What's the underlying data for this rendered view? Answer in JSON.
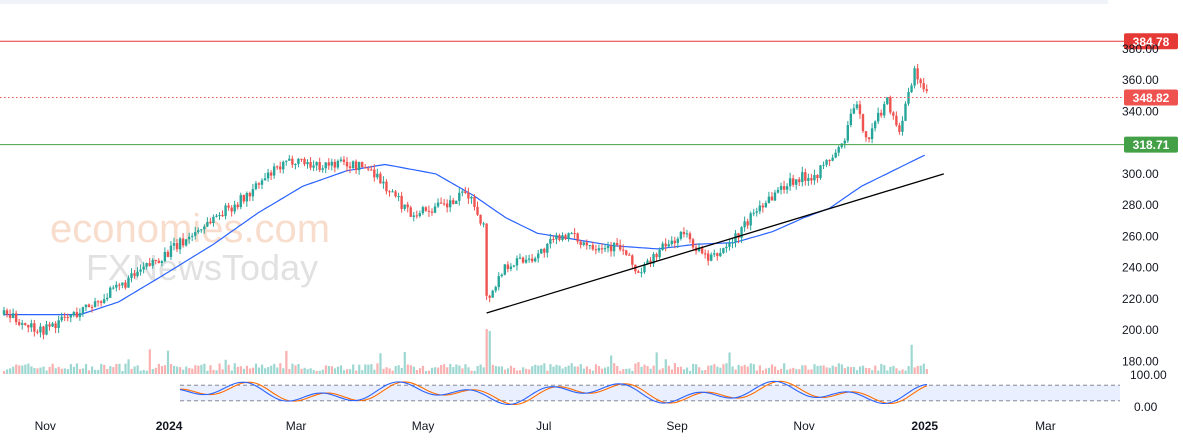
{
  "watermark": {
    "brand_line1": "economies.com",
    "brand_line2": "FXNewsToday"
  },
  "colors": {
    "up": "#26a69a",
    "down": "#ef5350",
    "ma": "#2962ff",
    "resistance": "#e53935",
    "support": "#43a047",
    "current": "#ef5350",
    "trend": "#000000",
    "stoch_k": "#2962ff",
    "stoch_d": "#ff6d00"
  },
  "chart_data": {
    "type": "candlestick",
    "x_tick_labels": [
      "Nov",
      "2024",
      "Mar",
      "May",
      "Jul",
      "Sep",
      "Nov",
      "2025",
      "Mar"
    ],
    "y_ticks": [
      180,
      200,
      220,
      240,
      260,
      280,
      300,
      320,
      340,
      360,
      380
    ],
    "y_tick_labels": [
      "180.00",
      "200.00",
      "220.00",
      "240.00",
      "260.00",
      "280.00",
      "300.00",
      "",
      "340.00",
      "360.00",
      "380.00"
    ],
    "ylim": [
      172,
      392
    ],
    "levels": [
      {
        "name": "resistance",
        "value": 384.78,
        "label": "384.78",
        "style": "solid",
        "color": "#e53935"
      },
      {
        "name": "current",
        "value": 348.82,
        "label": "348.82",
        "style": "dotted",
        "color": "#ef5350"
      },
      {
        "name": "support",
        "value": 318.71,
        "label": "318.71",
        "style": "solid",
        "color": "#43a047"
      }
    ],
    "trendline": {
      "from": {
        "month_index": 7.6,
        "value": 211
      },
      "to": {
        "month_index": 14.8,
        "value": 300
      }
    },
    "price_path": [
      [
        0,
        210
      ],
      [
        0.6,
        200
      ],
      [
        1.2,
        212
      ],
      [
        1.8,
        227
      ],
      [
        2.4,
        245
      ],
      [
        2.8,
        256
      ],
      [
        3.3,
        272
      ],
      [
        3.8,
        285
      ],
      [
        4.2,
        300
      ],
      [
        4.6,
        310
      ],
      [
        4.9,
        305
      ],
      [
        5.3,
        307
      ],
      [
        5.8,
        303
      ],
      [
        6.0,
        292
      ],
      [
        6.4,
        275
      ],
      [
        7.0,
        280
      ],
      [
        7.3,
        288
      ],
      [
        7.55,
        268
      ],
      [
        7.65,
        222
      ],
      [
        7.9,
        242
      ],
      [
        8.4,
        248
      ],
      [
        8.8,
        262
      ],
      [
        9.2,
        255
      ],
      [
        9.7,
        253
      ],
      [
        10.0,
        236
      ],
      [
        10.3,
        250
      ],
      [
        10.7,
        262
      ],
      [
        11.1,
        244
      ],
      [
        11.5,
        258
      ],
      [
        11.9,
        280
      ],
      [
        12.4,
        296
      ],
      [
        12.8,
        300
      ],
      [
        13.2,
        318
      ],
      [
        13.4,
        345
      ],
      [
        13.6,
        322
      ],
      [
        13.9,
        348
      ],
      [
        14.1,
        328
      ],
      [
        14.35,
        366
      ],
      [
        14.55,
        348
      ]
    ],
    "moving_average": [
      [
        0,
        210
      ],
      [
        1.2,
        210
      ],
      [
        1.8,
        218
      ],
      [
        2.5,
        235
      ],
      [
        3.3,
        255
      ],
      [
        4.0,
        275
      ],
      [
        4.7,
        292
      ],
      [
        5.4,
        302
      ],
      [
        6.0,
        306
      ],
      [
        6.8,
        300
      ],
      [
        7.4,
        286
      ],
      [
        7.9,
        272
      ],
      [
        8.4,
        262
      ],
      [
        9.0,
        258
      ],
      [
        9.6,
        254
      ],
      [
        10.3,
        252
      ],
      [
        10.9,
        255
      ],
      [
        11.5,
        256
      ],
      [
        12.1,
        263
      ],
      [
        12.6,
        272
      ],
      [
        13.0,
        278
      ],
      [
        13.5,
        292
      ],
      [
        14.0,
        302
      ],
      [
        14.55,
        313
      ]
    ],
    "stochastic": {
      "type": "oscillator",
      "y_tick_labels": [
        "100.00",
        "0.00"
      ],
      "ylim": [
        0,
        100
      ],
      "levels": [
        80,
        20
      ]
    }
  }
}
